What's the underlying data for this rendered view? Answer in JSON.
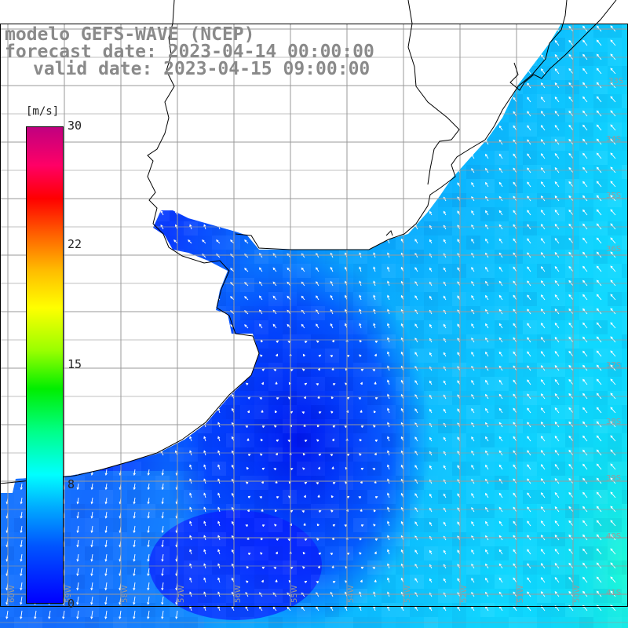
{
  "title": {
    "line1": "modelo GEFS-WAVE (NCEP)",
    "line2": "forecast date: 2023-04-14 00:00:00",
    "line3": "valid date: 2023-04-15 09:00:00"
  },
  "colorbar": {
    "unit": "[m/s]",
    "ticks": [
      "30",
      "22",
      "15",
      "8",
      "0"
    ],
    "tick_values": [
      30,
      22,
      15,
      8,
      0
    ],
    "range": [
      0,
      30
    ],
    "colors": {
      "low": "#0000ff",
      "mid_low": "#00ffff",
      "mid": "#00ee00",
      "mid_high": "#ffff00",
      "high": "#ff0000",
      "top": "#c00080"
    }
  },
  "grid": {
    "lat_labels": [
      "33S",
      "34S",
      "35S",
      "36S",
      "37S",
      "38S",
      "39S",
      "40S",
      "41S"
    ],
    "lon_labels": [
      "60W",
      "59W",
      "58W",
      "57W",
      "56W",
      "55W",
      "54W",
      "53W",
      "52W",
      "51W",
      "50W"
    ]
  },
  "colors": {
    "land": "#ffffff",
    "coast": "#000000",
    "gridline": "#9a9a9a",
    "arrows": "#ffffff"
  }
}
